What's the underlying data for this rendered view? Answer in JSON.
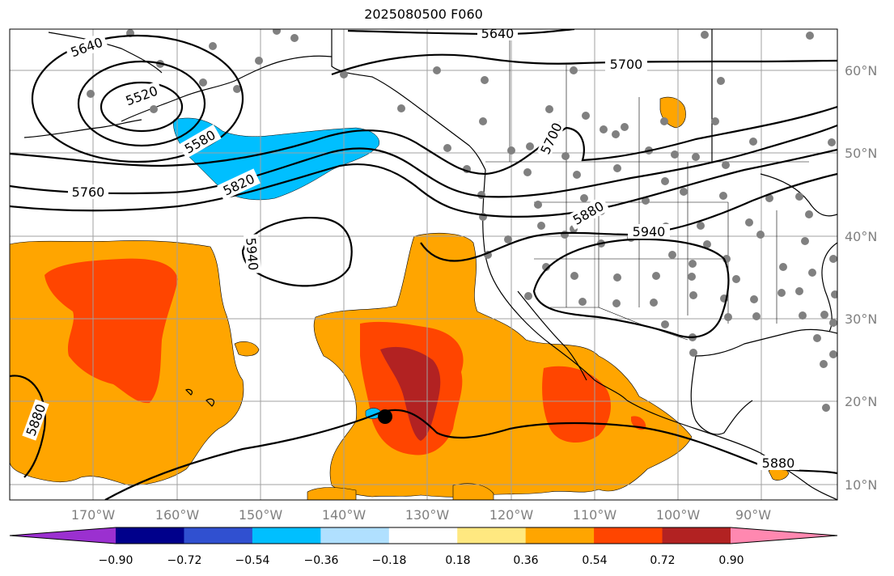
{
  "title": "2025080500 F060",
  "lon_labels": [
    "170°W",
    "160°W",
    "150°W",
    "140°W",
    "130°W",
    "120°W",
    "110°W",
    "100°W",
    "90°W"
  ],
  "lat_labels": [
    "60°N",
    "50°N",
    "40°N",
    "30°N",
    "20°N",
    "10°N"
  ],
  "contour_labels": [
    "5640",
    "5640",
    "5520",
    "5580",
    "5820",
    "5760",
    "5700",
    "5700",
    "5880",
    "5940",
    "5940",
    "5880",
    "5880"
  ],
  "colorbar": {
    "ticks": [
      "−0.90",
      "−0.72",
      "−0.54",
      "−0.36",
      "−0.18",
      "0.18",
      "0.36",
      "0.54",
      "0.72",
      "0.90"
    ],
    "colors": [
      "#9b30d0",
      "#00008b",
      "#3050d0",
      "#00bfff",
      "#b0e0ff",
      "#ffffff",
      "#ffe880",
      "#ffa500",
      "#ff4500",
      "#b22222",
      "#ff88b0"
    ]
  },
  "fill_colors": {
    "orange": "#ffa500",
    "red_orange": "#ff4500",
    "dark_red": "#b22222",
    "light_blue": "#00bfff"
  },
  "marker": "storm-center-dot"
}
